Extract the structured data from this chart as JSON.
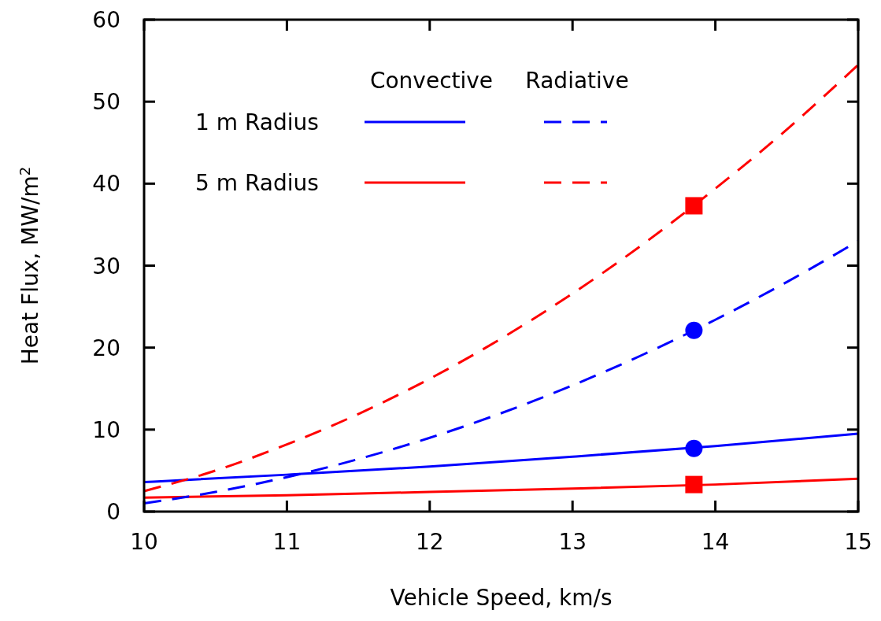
{
  "chart_data": {
    "type": "line",
    "xlabel": "Vehicle Speed, km/s",
    "ylabel": "Heat Flux, MW/m$^{2}$",
    "xlim": [
      10,
      15
    ],
    "xticks": [
      10,
      11,
      12,
      13,
      14,
      15
    ],
    "ylim": [
      0,
      60
    ],
    "yticks": [
      0,
      10,
      20,
      30,
      40,
      50,
      60
    ],
    "grid": false,
    "legend": "top left",
    "annotations": [
      "Convective",
      "Radiative"
    ],
    "series": [
      {
        "name": "1 m Radius",
        "color": "#0000ff",
        "line_style": "solid",
        "x": [
          10,
          11,
          12,
          13,
          14,
          15
        ],
        "values": [
          3.6,
          4.5,
          5.5,
          6.7,
          8.0,
          9.5
        ]
      },
      {
        "name": "5 m Radius",
        "color": "#ff0000",
        "line_style": "solid",
        "x": [
          10,
          11,
          12,
          13,
          14,
          15
        ],
        "values": [
          1.7,
          2.0,
          2.4,
          2.8,
          3.3,
          4.0
        ]
      },
      {
        "color": "#0000ff",
        "line_style": "dashed",
        "x": [
          10,
          10.5,
          11,
          11.5,
          12,
          12.5,
          13,
          13.5,
          14,
          14.5,
          15
        ],
        "values": [
          1.0,
          2.4,
          4.2,
          6.4,
          9.0,
          12.0,
          15.4,
          19.2,
          23.4,
          28.0,
          33.0
        ]
      },
      {
        "color": "#ff0000",
        "line_style": "dashed",
        "x": [
          10,
          10.5,
          11,
          11.5,
          12,
          12.5,
          13,
          13.5,
          14,
          14.5,
          15
        ],
        "values": [
          2.5,
          5.0,
          8.2,
          11.9,
          16.2,
          21.1,
          26.6,
          32.7,
          39.4,
          46.6,
          54.5
        ]
      },
      {
        "type": "scatter",
        "marker": "circle",
        "color": "#0000ff",
        "x": [
          13.85,
          13.85
        ],
        "values": [
          22.1,
          7.7
        ]
      },
      {
        "type": "scatter",
        "marker": "square",
        "color": "#ff0000",
        "x": [
          13.85,
          13.85
        ],
        "values": [
          37.3,
          3.3
        ]
      }
    ]
  }
}
